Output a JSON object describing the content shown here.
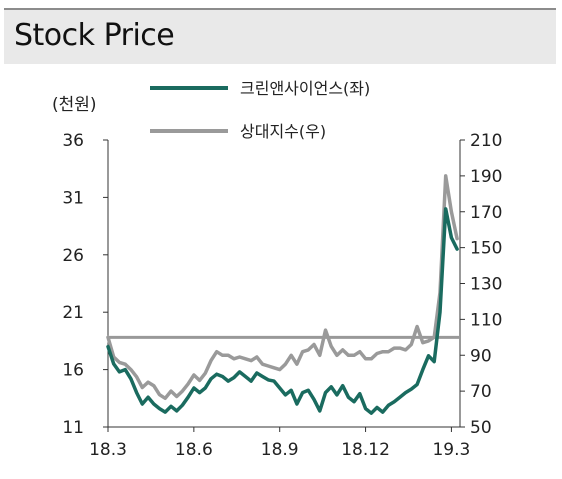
{
  "title": "Stock Price",
  "chart_data": {
    "type": "line",
    "title": "Stock Price",
    "left_unit_label": "(천원)",
    "x_tick_labels": [
      "18.3",
      "18.6",
      "18.9",
      "18.12",
      "19.3"
    ],
    "x_ticks": [
      0,
      3,
      6,
      9,
      12
    ],
    "xlim": [
      0,
      12.3
    ],
    "y_left": {
      "ylim": [
        11,
        36
      ],
      "ticks": [
        11,
        16,
        21,
        26,
        31,
        36
      ]
    },
    "y_right": {
      "ylim": [
        50,
        210
      ],
      "ticks": [
        50,
        70,
        90,
        110,
        130,
        150,
        170,
        190,
        210
      ]
    },
    "reference_line": {
      "axis": "right",
      "value": 100,
      "color": "#999999"
    },
    "colors": {
      "primary": "#1a6b5f",
      "relative": "#9a9a9a"
    },
    "series": [
      {
        "name": "크린앤사이언스(좌)",
        "axis": "left",
        "color": "#1a6b5f",
        "x": [
          0,
          0.2,
          0.4,
          0.6,
          0.8,
          1.0,
          1.2,
          1.4,
          1.6,
          1.8,
          2.0,
          2.2,
          2.4,
          2.6,
          2.8,
          3.0,
          3.2,
          3.4,
          3.6,
          3.8,
          4.0,
          4.2,
          4.4,
          4.6,
          4.8,
          5.0,
          5.2,
          5.4,
          5.6,
          5.8,
          6.0,
          6.2,
          6.4,
          6.6,
          6.8,
          7.0,
          7.2,
          7.4,
          7.6,
          7.8,
          8.0,
          8.2,
          8.4,
          8.6,
          8.8,
          9.0,
          9.2,
          9.4,
          9.6,
          9.8,
          10.0,
          10.2,
          10.4,
          10.6,
          10.8,
          11.0,
          11.2,
          11.4,
          11.6,
          11.8,
          12.0,
          12.2
        ],
        "values": [
          18.0,
          16.5,
          15.8,
          16.0,
          15.2,
          14.0,
          13.0,
          13.6,
          13.0,
          12.6,
          12.3,
          12.8,
          12.4,
          12.9,
          13.6,
          14.4,
          14.0,
          14.4,
          15.2,
          15.6,
          15.4,
          15.0,
          15.3,
          15.8,
          15.4,
          15.0,
          15.7,
          15.4,
          15.1,
          15.0,
          14.4,
          13.8,
          14.2,
          13.0,
          14.0,
          14.2,
          13.4,
          12.4,
          14.0,
          14.5,
          13.8,
          14.6,
          13.6,
          13.2,
          13.9,
          12.6,
          12.2,
          12.7,
          12.3,
          12.9,
          13.2,
          13.6,
          14.0,
          14.3,
          14.7,
          16.0,
          17.2,
          16.7,
          21.0,
          30.0,
          27.5,
          26.5
        ]
      },
      {
        "name": "상대지수(우)",
        "axis": "right",
        "color": "#9a9a9a",
        "x": [
          0,
          0.2,
          0.4,
          0.6,
          0.8,
          1.0,
          1.2,
          1.4,
          1.6,
          1.8,
          2.0,
          2.2,
          2.4,
          2.6,
          2.8,
          3.0,
          3.2,
          3.4,
          3.6,
          3.8,
          4.0,
          4.2,
          4.4,
          4.6,
          4.8,
          5.0,
          5.2,
          5.4,
          5.6,
          5.8,
          6.0,
          6.2,
          6.4,
          6.6,
          6.8,
          7.0,
          7.2,
          7.4,
          7.6,
          7.8,
          8.0,
          8.2,
          8.4,
          8.6,
          8.8,
          9.0,
          9.2,
          9.4,
          9.6,
          9.8,
          10.0,
          10.2,
          10.4,
          10.6,
          10.8,
          11.0,
          11.2,
          11.4,
          11.6,
          11.8,
          12.0,
          12.2
        ],
        "values": [
          100,
          89,
          86,
          85,
          82,
          78,
          72,
          75,
          73,
          68,
          66,
          70,
          67,
          70,
          74,
          79,
          76,
          80,
          87,
          92,
          90,
          90,
          88,
          89,
          88,
          87,
          89,
          85,
          84,
          83,
          82,
          85,
          90,
          85,
          92,
          93,
          96,
          90,
          104,
          95,
          90,
          93,
          90,
          90,
          92,
          88,
          88,
          91,
          92,
          92,
          94,
          94,
          93,
          96,
          106,
          97,
          98,
          100,
          125,
          190,
          170,
          155
        ]
      }
    ]
  }
}
